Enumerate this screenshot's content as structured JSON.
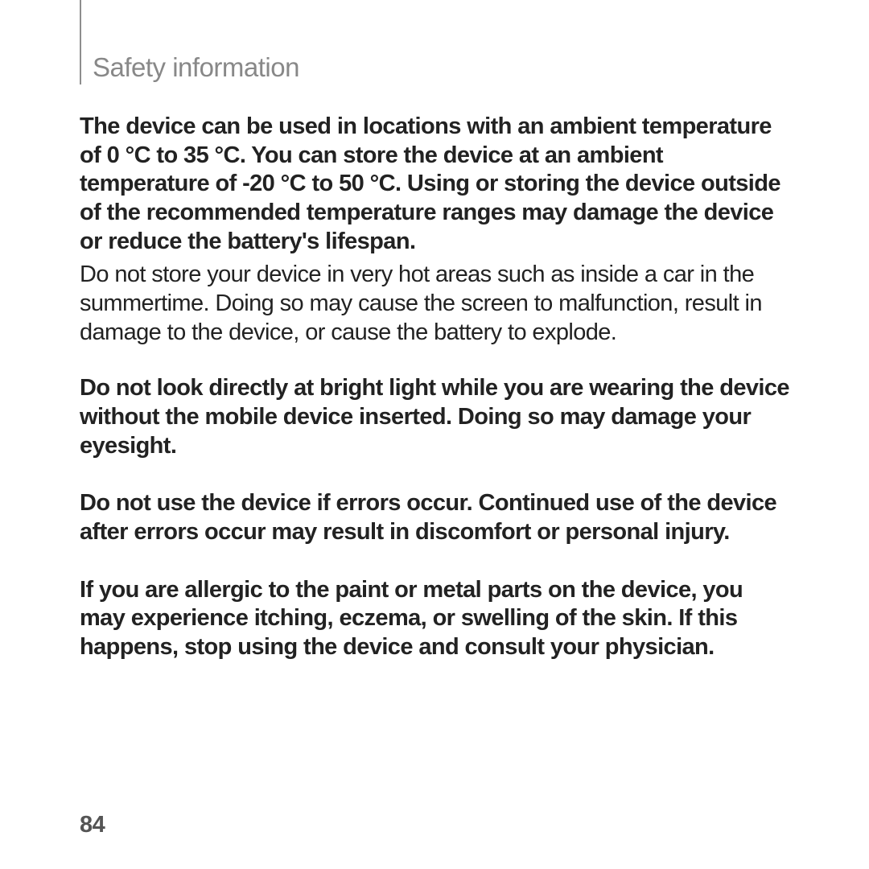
{
  "section_title": "Safety information",
  "paragraphs": {
    "p1": "The device can be used in locations with an ambient temperature of 0 °C to 35 °C. You can store the device at an ambient temperature of -20 °C to 50 °C. Using or storing the device outside of the recommended temperature ranges may damage the device or reduce the battery's lifespan.",
    "p2": "Do not store your device in very hot areas such as inside a car in the summertime. Doing so may cause the screen to malfunction, result in damage to the device, or cause the battery to explode.",
    "p3": "Do not look directly at bright light while you are wearing the device without the mobile device inserted. Doing so may damage your eyesight.",
    "p4": "Do not use the device if errors occur. Continued use of the device after errors occur may result in discomfort or personal injury.",
    "p5": "If you are allergic to the paint or metal parts on the device, you may experience itching, eczema, or swelling of the skin. If this happens, stop using the device and consult your physician."
  },
  "page_number": "84",
  "colors": {
    "text_dark": "#222222",
    "text_gray": "#888888",
    "line_gray": "#8e8e8e",
    "background": "#ffffff"
  },
  "typography": {
    "title_fontsize": 33,
    "body_fontsize": 29,
    "line_height": 1.23
  }
}
